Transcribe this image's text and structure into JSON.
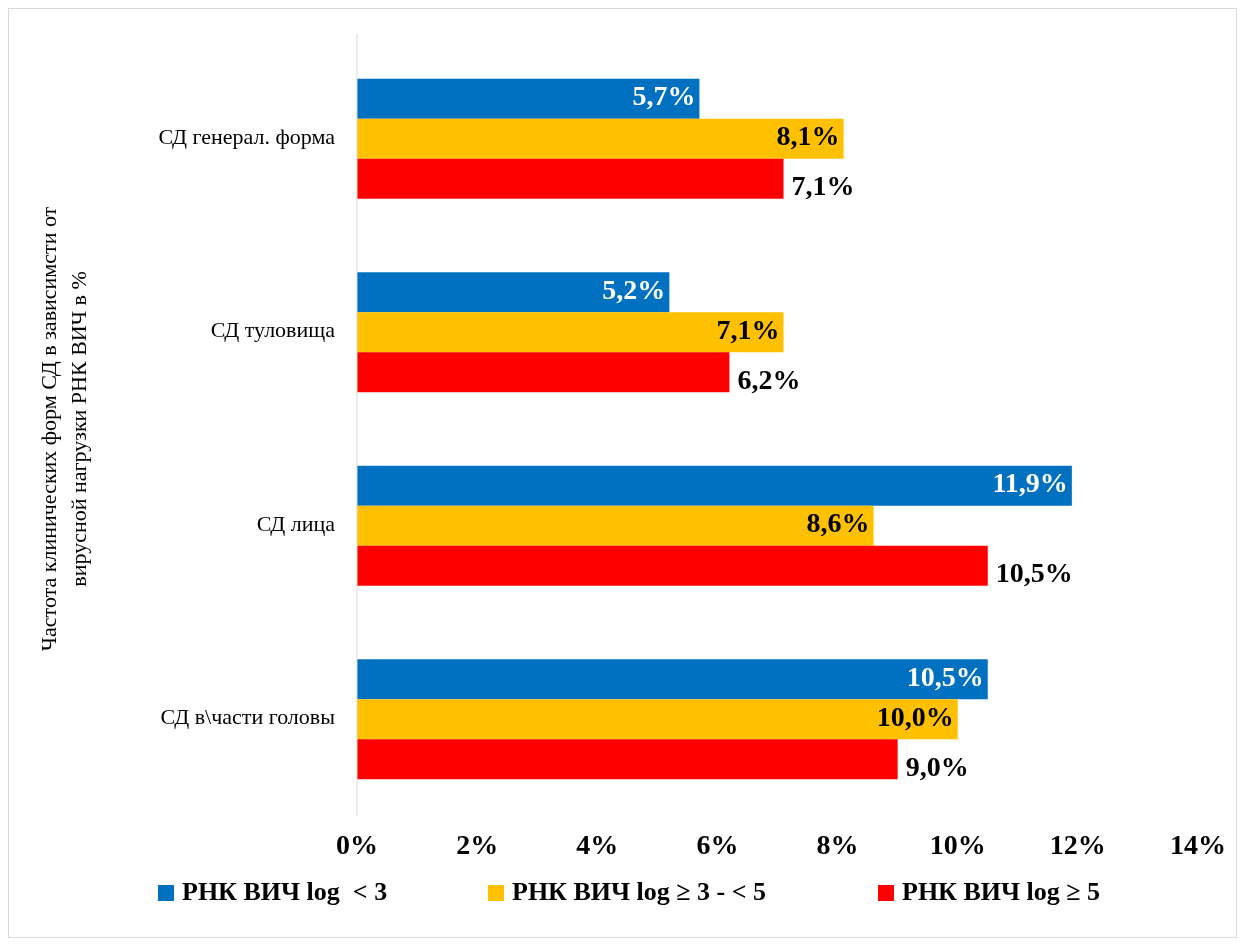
{
  "chart_data": {
    "type": "bar",
    "orientation": "horizontal",
    "categories": [
      "СД генерал. форма",
      "СД туловища",
      "СД лица",
      "СД в\\части головы"
    ],
    "ylabel": "Частота  клинических  форм  СД  в  зависимсти  от  вирусной  нагрузки  РНК  ВИЧ  в  %",
    "series": [
      {
        "name": "РНК ВИЧ log  < 3",
        "color": "#0070c0",
        "values": [
          5.7,
          5.2,
          11.9,
          10.5
        ],
        "value_labels": [
          "5,7%",
          "5,2%",
          "11,9%",
          "10,5%"
        ]
      },
      {
        "name": "РНК ВИЧ log ≥ 3 - < 5",
        "color": "#ffc000",
        "values": [
          8.1,
          7.1,
          8.6,
          10.0
        ],
        "value_labels": [
          "8,1%",
          "7,1%",
          "8,6%",
          "10,0%"
        ]
      },
      {
        "name": "РНК ВИЧ log ≥ 5",
        "color": "#ff0000",
        "values": [
          7.1,
          6.2,
          10.5,
          9.0
        ],
        "value_labels": [
          "7,1%",
          "6,2%",
          "10,5%",
          "9,0%"
        ]
      }
    ],
    "xlim": [
      0,
      14
    ],
    "xticks": [
      {
        "value": 0,
        "label": "0%"
      },
      {
        "value": 2,
        "label": "2%"
      },
      {
        "value": 4,
        "label": "4%"
      },
      {
        "value": 6,
        "label": "6%"
      },
      {
        "value": 8,
        "label": "8%"
      },
      {
        "value": 10,
        "label": "10%"
      },
      {
        "value": 12,
        "label": "12%"
      },
      {
        "value": 14,
        "label": "14%"
      }
    ],
    "grid": false,
    "legend": "bottom"
  }
}
